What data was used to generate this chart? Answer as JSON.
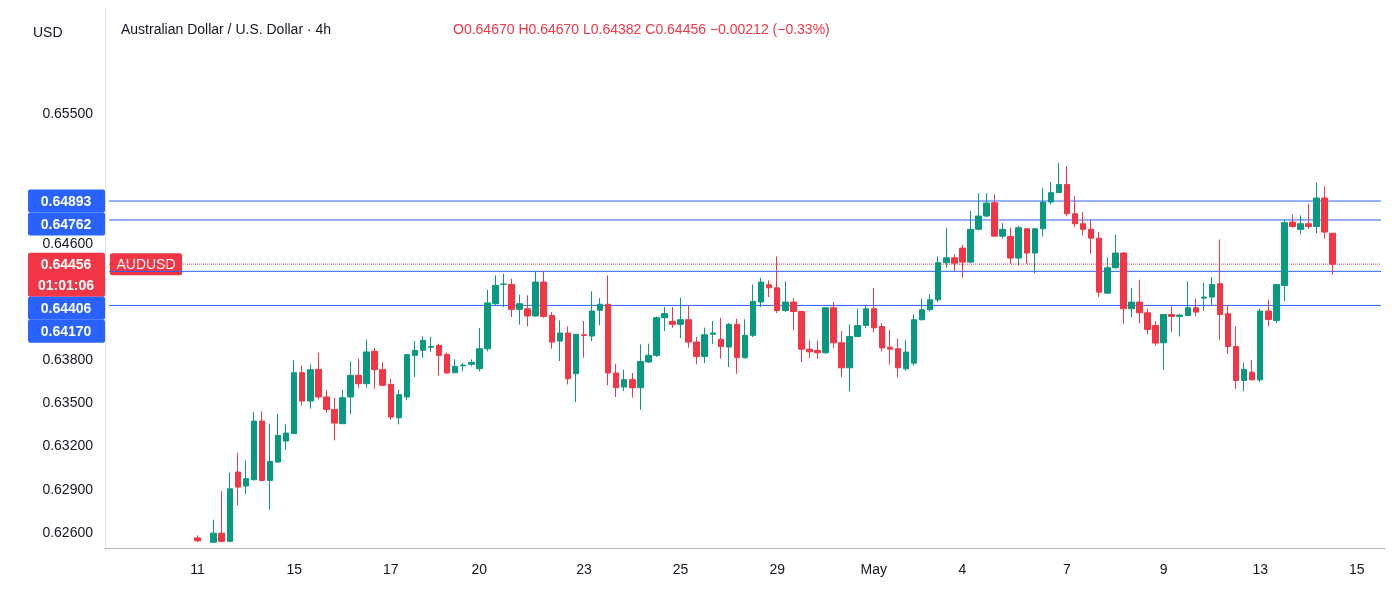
{
  "chart_data": {
    "type": "candlestick",
    "title": "Australian Dollar / U.S. Dollar · 4h",
    "subtitle": "O0.64670 H0.64670 L0.64382 C0.64456 −0.00212 (−0.33%)",
    "ylabel": "USD",
    "categories": [
      null,
      null,
      null,
      null,
      null,
      null,
      null,
      null,
      null,
      null,
      null,
      "11",
      null,
      null,
      null,
      null,
      null,
      null,
      null,
      null,
      null,
      null,
      null,
      "15",
      null,
      null,
      null,
      null,
      null,
      null,
      null,
      null,
      null,
      null,
      null,
      "17",
      null,
      null,
      null,
      null,
      null,
      null,
      null,
      null,
      null,
      null,
      "20",
      null,
      null,
      null,
      null,
      null,
      null,
      null,
      null,
      null,
      null,
      null,
      null,
      "23",
      null,
      null,
      null,
      null,
      null,
      null,
      null,
      null,
      null,
      null,
      null,
      "25",
      null,
      null,
      null,
      null,
      null,
      null,
      null,
      null,
      null,
      null,
      null,
      "29",
      null,
      null,
      null,
      null,
      null,
      null,
      null,
      null,
      null,
      null,
      null,
      "May",
      null,
      null,
      null,
      null,
      null,
      null,
      null,
      null,
      null,
      null,
      "4",
      null,
      null,
      null,
      null,
      null,
      null,
      null,
      null,
      null,
      null,
      null,
      null,
      "7",
      null,
      null,
      null,
      null,
      null,
      null,
      null,
      null,
      null,
      null,
      null,
      "9",
      null,
      null,
      null,
      null,
      null,
      null,
      null,
      null,
      null,
      null,
      null,
      "13",
      null,
      null,
      null,
      null,
      null,
      null,
      null,
      null,
      null,
      null,
      null,
      "15",
      null,
      null,
      null
    ],
    "ohlc": [
      null,
      null,
      null,
      null,
      null,
      null,
      null,
      null,
      null,
      null,
      null,
      [
        0.6256,
        0.62577,
        0.6253,
        0.6254
      ],
      null,
      [
        0.6253,
        0.62686,
        0.6253,
        0.62593
      ],
      [
        0.62593,
        0.62884,
        0.6253,
        0.62536
      ],
      [
        0.62536,
        0.63011,
        0.6253,
        0.629
      ],
      [
        0.63016,
        0.6315,
        0.62785,
        0.62912
      ],
      [
        0.62919,
        0.63097,
        0.62861,
        0.6297
      ],
      [
        0.62963,
        0.63432,
        0.62958,
        0.63369
      ],
      [
        0.63369,
        0.63436,
        0.62954,
        0.62958
      ],
      [
        0.62958,
        0.63351,
        0.62755,
        0.6309
      ],
      [
        0.63085,
        0.6342,
        0.63083,
        0.6327
      ],
      [
        0.63231,
        0.63346,
        0.63171,
        0.63286
      ],
      [
        0.63282,
        0.6379,
        0.63282,
        0.63704
      ],
      [
        0.63704,
        0.63755,
        0.63476,
        0.63508
      ],
      [
        0.63508,
        0.6376,
        0.63455,
        0.63725
      ],
      [
        0.63727,
        0.63843,
        0.63519,
        0.63536
      ],
      [
        0.63536,
        0.63582,
        0.63427,
        0.6345
      ],
      [
        0.6345,
        0.63529,
        0.63235,
        0.63355
      ],
      [
        0.63351,
        0.63587,
        0.63351,
        0.63531
      ],
      [
        0.63536,
        0.63783,
        0.63415,
        0.63686
      ],
      [
        0.63686,
        0.63801,
        0.636,
        0.63628
      ],
      [
        0.63628,
        0.63933,
        0.636,
        0.63848
      ],
      [
        0.63852,
        0.63875,
        0.63593,
        0.63725
      ],
      [
        0.63725,
        0.63778,
        0.6361,
        0.63617
      ],
      [
        0.63623,
        0.63663,
        0.63379,
        0.63397
      ],
      [
        0.63392,
        0.63587,
        0.63346,
        0.63552
      ],
      [
        0.63536,
        0.63829,
        0.63513,
        0.63829
      ],
      [
        0.63824,
        0.63924,
        0.63674,
        0.63859
      ],
      [
        0.63859,
        0.63956,
        0.63808,
        0.63928
      ],
      [
        0.6388,
        0.63951,
        0.63848,
        0.63885
      ],
      [
        0.63893,
        0.63905,
        0.63685,
        0.63824
      ],
      [
        0.63831,
        0.63843,
        0.63697,
        0.63702
      ],
      [
        0.63704,
        0.63796,
        0.63702,
        0.63748
      ],
      [
        0.63752,
        0.63771,
        0.63713,
        0.63757
      ],
      [
        0.63762,
        0.63796,
        0.63748,
        0.63776
      ],
      [
        0.63732,
        0.64013,
        0.63713,
        0.6387
      ],
      [
        0.6387,
        0.64279,
        0.63852,
        0.64187
      ],
      [
        0.64182,
        0.64378,
        0.64171,
        0.64309
      ],
      [
        0.64316,
        0.6439,
        0.64159,
        0.64318
      ],
      [
        0.64316,
        0.64355,
        0.6409,
        0.64143
      ],
      [
        0.64143,
        0.64244,
        0.64037,
        0.64182
      ],
      [
        0.64147,
        0.6424,
        0.64025,
        0.64097
      ],
      [
        0.64097,
        0.64408,
        0.64094,
        0.64332
      ],
      [
        0.64332,
        0.64408,
        0.64085,
        0.64094
      ],
      [
        0.64101,
        0.64124,
        0.6387,
        0.63916
      ],
      [
        0.63923,
        0.64067,
        0.63785,
        0.63979
      ],
      [
        0.63979,
        0.64025,
        0.63623,
        0.63662
      ],
      [
        0.63697,
        0.6397,
        0.63501,
        0.6397
      ],
      [
        0.63967,
        0.64062,
        0.63808,
        0.63962
      ],
      [
        0.63958,
        0.64268,
        0.63923,
        0.64131
      ],
      [
        0.64136,
        0.64221,
        0.64032,
        0.64178
      ],
      [
        0.64178,
        0.64378,
        0.63616,
        0.63702
      ],
      [
        0.63702,
        0.63766,
        0.63535,
        0.636
      ],
      [
        0.63605,
        0.63725,
        0.63577,
        0.63656
      ],
      [
        0.63656,
        0.63702,
        0.63531,
        0.636
      ],
      [
        0.636,
        0.639,
        0.63447,
        0.63782
      ],
      [
        0.63778,
        0.63905,
        0.63771,
        0.63824
      ],
      [
        0.63824,
        0.64094,
        0.63813,
        0.64085
      ],
      [
        0.64085,
        0.64159,
        0.63993,
        0.64113
      ],
      [
        0.6406,
        0.64159,
        0.64016,
        0.64039
      ],
      [
        0.64039,
        0.64224,
        0.63944,
        0.64071
      ],
      [
        0.64071,
        0.64171,
        0.63877,
        0.63916
      ],
      [
        0.63916,
        0.63951,
        0.63762,
        0.63817
      ],
      [
        0.63817,
        0.64016,
        0.63771,
        0.63967
      ],
      [
        0.6397,
        0.64062,
        0.63905,
        0.63979
      ],
      [
        0.63935,
        0.64085,
        0.63801,
        0.63886
      ],
      [
        0.63882,
        0.64048,
        0.63743,
        0.64039
      ],
      [
        0.64039,
        0.64078,
        0.63697,
        0.63808
      ],
      [
        0.63808,
        0.64074,
        0.63801,
        0.63963
      ],
      [
        0.63963,
        0.64316,
        0.63951,
        0.64198
      ],
      [
        0.64194,
        0.64362,
        0.64159,
        0.64332
      ],
      [
        0.64313,
        0.64343,
        0.64228,
        0.64292
      ],
      [
        0.64292,
        0.64509,
        0.64117,
        0.64135
      ],
      [
        0.64135,
        0.64336,
        0.64124,
        0.64193
      ],
      [
        0.64193,
        0.64221,
        0.63997,
        0.64128
      ],
      [
        0.64128,
        0.64135,
        0.63777,
        0.63867
      ],
      [
        0.63867,
        0.63927,
        0.63807,
        0.63849
      ],
      [
        0.63858,
        0.63927,
        0.638,
        0.63842
      ],
      [
        0.63842,
        0.64154,
        0.63835,
        0.64154
      ],
      [
        0.64154,
        0.64193,
        0.63876,
        0.63911
      ],
      [
        0.63911,
        0.63992,
        0.63673,
        0.63738
      ],
      [
        0.63738,
        0.64038,
        0.63576,
        0.63955
      ],
      [
        0.63955,
        0.64147,
        0.6395,
        0.64031
      ],
      [
        0.64031,
        0.6417,
        0.64015,
        0.64147
      ],
      [
        0.64147,
        0.6429,
        0.63985,
        0.64015
      ],
      [
        0.64024,
        0.64047,
        0.63851,
        0.63876
      ],
      [
        0.63881,
        0.64001,
        0.63761,
        0.63867
      ],
      [
        0.6387,
        0.63939,
        0.63673,
        0.63738
      ],
      [
        0.63731,
        0.63932,
        0.63719,
        0.63847
      ],
      [
        0.6377,
        0.64107,
        0.63754,
        0.64071
      ],
      [
        0.64071,
        0.64216,
        0.64066,
        0.6414
      ],
      [
        0.6414,
        0.64246,
        0.64128,
        0.64209
      ],
      [
        0.64209,
        0.64509,
        0.64193,
        0.64466
      ],
      [
        0.64466,
        0.64708,
        0.64431,
        0.645
      ],
      [
        0.645,
        0.64523,
        0.64408,
        0.64463
      ],
      [
        0.64567,
        0.6459,
        0.64362,
        0.6447
      ],
      [
        0.6447,
        0.64824,
        0.64463,
        0.64697
      ],
      [
        0.64697,
        0.64948,
        0.6469,
        0.64789
      ],
      [
        0.64789,
        0.64948,
        0.64782,
        0.64879
      ],
      [
        0.64881,
        0.64939,
        0.64648,
        0.6465
      ],
      [
        0.6465,
        0.6474,
        0.64632,
        0.64697
      ],
      [
        0.64648,
        0.64708,
        0.64459,
        0.64498
      ],
      [
        0.64498,
        0.6472,
        0.64447,
        0.64708
      ],
      [
        0.64701,
        0.64701,
        0.64459,
        0.64533
      ],
      [
        0.64533,
        0.64708,
        0.64394,
        0.64701
      ],
      [
        0.64701,
        0.64985,
        0.64648,
        0.64886
      ],
      [
        0.64886,
        0.65025,
        0.6487,
        0.64951
      ],
      [
        0.64951,
        0.65156,
        0.64951,
        0.65008
      ],
      [
        0.65008,
        0.65133,
        0.64787,
        0.64805
      ],
      [
        0.64805,
        0.64928,
        0.64713,
        0.64736
      ],
      [
        0.64736,
        0.64817,
        0.64655,
        0.64697
      ],
      [
        0.64697,
        0.64764,
        0.64528,
        0.64636
      ],
      [
        0.64636,
        0.64678,
        0.64228,
        0.64262
      ],
      [
        0.64255,
        0.645,
        0.64251,
        0.64431
      ],
      [
        0.64431,
        0.6466,
        0.64424,
        0.64533
      ],
      [
        0.64533,
        0.64539,
        0.64043,
        0.64147
      ],
      [
        0.64147,
        0.6429,
        0.64089,
        0.64193
      ],
      [
        0.64193,
        0.64348,
        0.64047,
        0.64119
      ],
      [
        0.64119,
        0.64147,
        0.63969,
        0.64003
      ],
      [
        0.64031,
        0.64061,
        0.63893,
        0.63909
      ],
      [
        0.63911,
        0.64107,
        0.63724,
        0.64107
      ],
      [
        0.64107,
        0.64163,
        0.63985,
        0.64094
      ],
      [
        0.64094,
        0.64112,
        0.63955,
        0.64103
      ],
      [
        0.64101,
        0.64336,
        0.64096,
        0.64154
      ],
      [
        0.64154,
        0.64216,
        0.64096,
        0.64124
      ],
      [
        0.64221,
        0.64327,
        0.64131,
        0.64228
      ],
      [
        0.64228,
        0.64366,
        0.6417,
        0.64315
      ],
      [
        0.6432,
        0.64627,
        0.63932,
        0.64107
      ],
      [
        0.64112,
        0.6417,
        0.63835,
        0.63886
      ],
      [
        0.63886,
        0.64024,
        0.63592,
        0.6365
      ],
      [
        0.6365,
        0.63773,
        0.63576,
        0.63727
      ],
      [
        0.63708,
        0.63793,
        0.6365,
        0.63655
      ],
      [
        0.63655,
        0.64147,
        0.63639,
        0.64131
      ],
      [
        0.64131,
        0.64209,
        0.64024,
        0.64073
      ],
      [
        0.64066,
        0.64315,
        0.64047,
        0.64315
      ],
      [
        0.64308,
        0.64766,
        0.642,
        0.64743
      ],
      [
        0.64747,
        0.648,
        0.64708,
        0.64717
      ],
      [
        0.64697,
        0.64794,
        0.64662,
        0.64736
      ],
      [
        0.64736,
        0.64874,
        0.64701,
        0.64717
      ],
      [
        0.64717,
        0.6502,
        0.64671,
        0.64914
      ],
      [
        0.64914,
        0.64995,
        0.64632,
        0.64678
      ],
      [
        0.6467,
        0.6467,
        0.64382,
        0.64456
      ],
      null,
      null,
      null,
      null,
      null,
      null
    ],
    "ylim": [
      0.6249,
      0.6623
    ],
    "yticks": [
      {
        "value": 0.626,
        "label": "0.62600"
      },
      {
        "value": 0.629,
        "label": "0.62900"
      },
      {
        "value": 0.632,
        "label": "0.63200"
      },
      {
        "value": 0.635,
        "label": "0.63500"
      },
      {
        "value": 0.638,
        "label": "0.63800"
      },
      {
        "value": 0.646,
        "label": "0.64600"
      },
      {
        "value": 0.655,
        "label": "0.65500"
      }
    ],
    "ref_lines": [
      {
        "axis": "y",
        "value": 0.64893,
        "label": "0.64893",
        "color": "#2962ff",
        "line_style": "solid"
      },
      {
        "axis": "y",
        "value": 0.64762,
        "label": "0.64762",
        "color": "#2962ff",
        "line_style": "solid"
      },
      {
        "axis": "y",
        "value": 0.64456,
        "label": "0.64456",
        "color": "#f23645",
        "line_style": "dotted"
      },
      {
        "axis": "y",
        "value": 0.64406,
        "label": "0.64406",
        "color": "#2962ff",
        "line_style": "solid"
      },
      {
        "axis": "y",
        "value": 0.6417,
        "label": "0.64170",
        "color": "#2962ff",
        "line_style": "solid"
      }
    ],
    "annotations": [
      "AUDUSD",
      "01:01:06"
    ],
    "grid": false
  }
}
